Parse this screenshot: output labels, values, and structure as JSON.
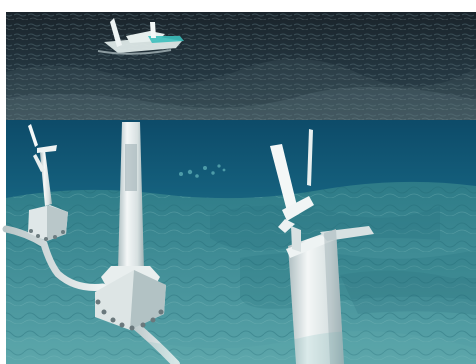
{
  "scene": {
    "subject": "",
    "colors": {
      "sky_band": "#ffffff",
      "sea_surface_dark": "#1d2b33",
      "sea_surface_light": "#6a7f86",
      "underwater_top": "#0d4f6e",
      "underwater_mid": "#1f6f88",
      "seabed": "#3f8b93",
      "structure_white": "#e7ecec",
      "structure_shadow": "#8fa4a8",
      "vessel_hull": "#d8e3e2",
      "vessel_cyan": "#39c4c0"
    },
    "icons": [
      "vessel-icon",
      "turbine-icon",
      "cable-icon"
    ]
  }
}
